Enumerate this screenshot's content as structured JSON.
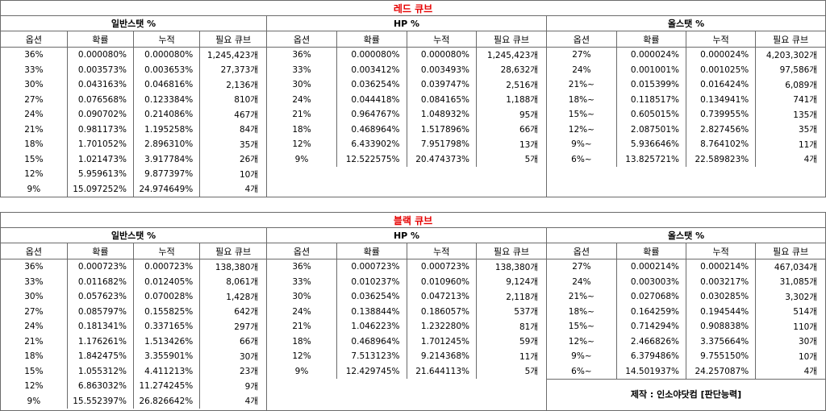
{
  "headers": [
    "옵션",
    "확률",
    "누적",
    "필요 큐브"
  ],
  "red": {
    "title": "레드 큐브",
    "panels": [
      {
        "title": "일반스탯 %",
        "rows": [
          [
            "36%",
            "0.000080%",
            "0.000080%",
            "1,245,423개"
          ],
          [
            "33%",
            "0.003573%",
            "0.003653%",
            "27,373개"
          ],
          [
            "30%",
            "0.043163%",
            "0.046816%",
            "2,136개"
          ],
          [
            "27%",
            "0.076568%",
            "0.123384%",
            "810개"
          ],
          [
            "24%",
            "0.090702%",
            "0.214086%",
            "467개"
          ],
          [
            "21%",
            "0.981173%",
            "1.195258%",
            "84개"
          ],
          [
            "18%",
            "1.701052%",
            "2.896310%",
            "35개"
          ],
          [
            "15%",
            "1.021473%",
            "3.917784%",
            "26개"
          ],
          [
            "12%",
            "5.959613%",
            "9.877397%",
            "10개"
          ],
          [
            "9%",
            "15.097252%",
            "24.974649%",
            "4개"
          ]
        ]
      },
      {
        "title": "HP %",
        "rows": [
          [
            "36%",
            "0.000080%",
            "0.000080%",
            "1,245,423개"
          ],
          [
            "33%",
            "0.003412%",
            "0.003493%",
            "28,632개"
          ],
          [
            "30%",
            "0.036254%",
            "0.039747%",
            "2,516개"
          ],
          [
            "24%",
            "0.044418%",
            "0.084165%",
            "1,188개"
          ],
          [
            "21%",
            "0.964767%",
            "1.048932%",
            "95개"
          ],
          [
            "18%",
            "0.468964%",
            "1.517896%",
            "66개"
          ],
          [
            "12%",
            "6.433902%",
            "7.951798%",
            "13개"
          ],
          [
            "9%",
            "12.522575%",
            "20.474373%",
            "5개"
          ]
        ]
      },
      {
        "title": "올스탯 %",
        "rows": [
          [
            "27%",
            "0.000024%",
            "0.000024%",
            "4,203,302개"
          ],
          [
            "24%",
            "0.001001%",
            "0.001025%",
            "97,586개"
          ],
          [
            "21%~",
            "0.015399%",
            "0.016424%",
            "6,089개"
          ],
          [
            "18%~",
            "0.118517%",
            "0.134941%",
            "741개"
          ],
          [
            "15%~",
            "0.605015%",
            "0.739955%",
            "135개"
          ],
          [
            "12%~",
            "2.087501%",
            "2.827456%",
            "35개"
          ],
          [
            "9%~",
            "5.936646%",
            "8.764102%",
            "11개"
          ],
          [
            "6%~",
            "13.825721%",
            "22.589823%",
            "4개"
          ]
        ]
      }
    ]
  },
  "black": {
    "title": "블랙 큐브",
    "panels": [
      {
        "title": "일반스탯 %",
        "rows": [
          [
            "36%",
            "0.000723%",
            "0.000723%",
            "138,380개"
          ],
          [
            "33%",
            "0.011682%",
            "0.012405%",
            "8,061개"
          ],
          [
            "30%",
            "0.057623%",
            "0.070028%",
            "1,428개"
          ],
          [
            "27%",
            "0.085797%",
            "0.155825%",
            "642개"
          ],
          [
            "24%",
            "0.181341%",
            "0.337165%",
            "297개"
          ],
          [
            "21%",
            "1.176261%",
            "1.513426%",
            "66개"
          ],
          [
            "18%",
            "1.842475%",
            "3.355901%",
            "30개"
          ],
          [
            "15%",
            "1.055312%",
            "4.411213%",
            "23개"
          ],
          [
            "12%",
            "6.863032%",
            "11.274245%",
            "9개"
          ],
          [
            "9%",
            "15.552397%",
            "26.826642%",
            "4개"
          ]
        ]
      },
      {
        "title": "HP %",
        "rows": [
          [
            "36%",
            "0.000723%",
            "0.000723%",
            "138,380개"
          ],
          [
            "33%",
            "0.010237%",
            "0.010960%",
            "9,124개"
          ],
          [
            "30%",
            "0.036254%",
            "0.047213%",
            "2,118개"
          ],
          [
            "24%",
            "0.138844%",
            "0.186057%",
            "537개"
          ],
          [
            "21%",
            "1.046223%",
            "1.232280%",
            "81개"
          ],
          [
            "18%",
            "0.468964%",
            "1.701245%",
            "59개"
          ],
          [
            "12%",
            "7.513123%",
            "9.214368%",
            "11개"
          ],
          [
            "9%",
            "12.429745%",
            "21.644113%",
            "5개"
          ]
        ]
      },
      {
        "title": "올스탯 %",
        "rows": [
          [
            "27%",
            "0.000214%",
            "0.000214%",
            "467,034개"
          ],
          [
            "24%",
            "0.003003%",
            "0.003217%",
            "31,085개"
          ],
          [
            "21%~",
            "0.027068%",
            "0.030285%",
            "3,302개"
          ],
          [
            "18%~",
            "0.164259%",
            "0.194544%",
            "514개"
          ],
          [
            "15%~",
            "0.714294%",
            "0.908838%",
            "110개"
          ],
          [
            "12%~",
            "2.466826%",
            "3.375664%",
            "30개"
          ],
          [
            "9%~",
            "6.379486%",
            "9.755150%",
            "10개"
          ],
          [
            "6%~",
            "14.501937%",
            "24.257087%",
            "4개"
          ]
        ]
      }
    ],
    "credit": "제작 : 인소야닷컴 [판단능력]"
  }
}
